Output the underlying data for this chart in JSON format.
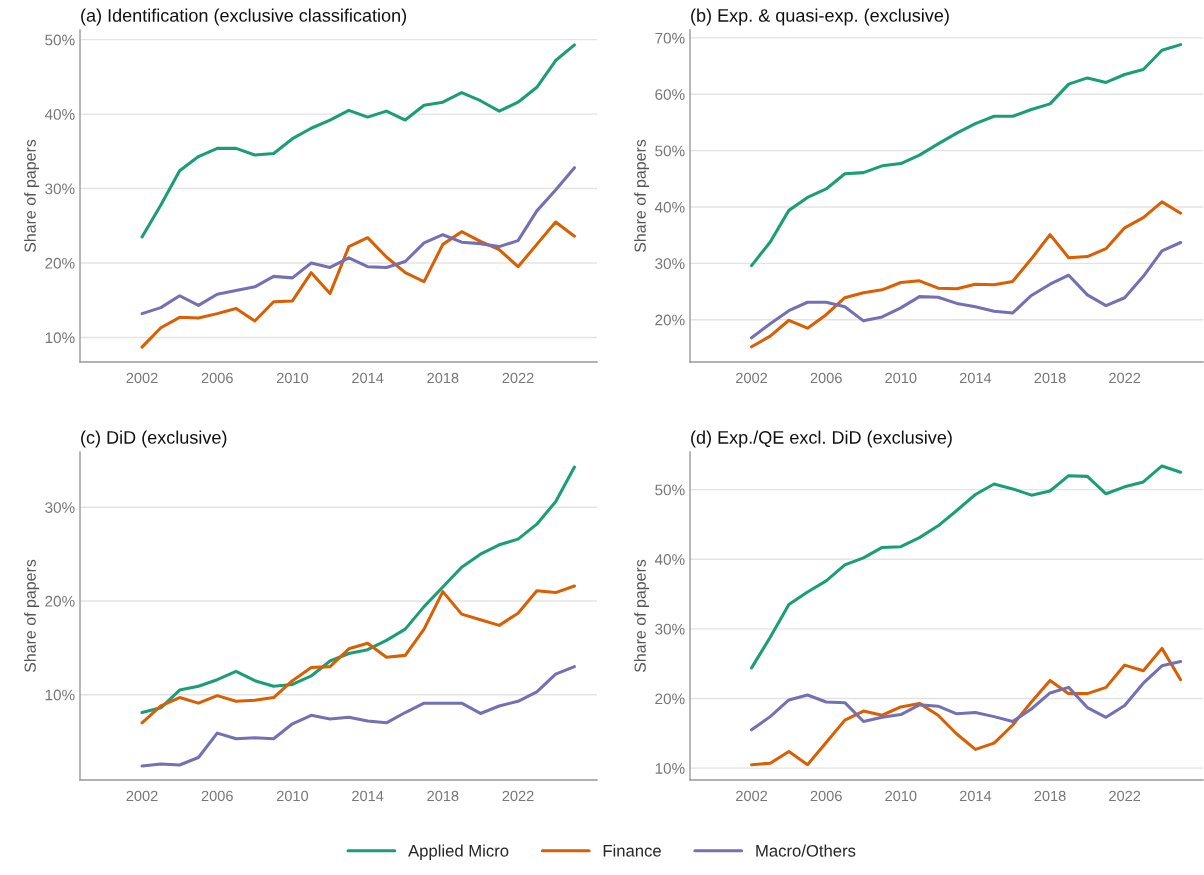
{
  "chart_data": [
    {
      "type": "line",
      "title": "(a) Identification (exclusive classification)",
      "ylabel": "Share of papers",
      "grid": "y",
      "legend": "bottom",
      "x": [
        2002,
        2003,
        2004,
        2005,
        2006,
        2007,
        2008,
        2009,
        2010,
        2011,
        2012,
        2013,
        2014,
        2015,
        2016,
        2017,
        2018,
        2019,
        2020,
        2021,
        2022,
        2023,
        2024,
        2025
      ],
      "xlim": [
        1998.7,
        2026.2
      ],
      "xticks": [
        2002,
        2006,
        2010,
        2014,
        2018,
        2022
      ],
      "ylim": [
        6.7,
        51.3
      ],
      "yticks": [
        {
          "value": 10,
          "label": "10%"
        },
        {
          "value": 20,
          "label": "20%"
        },
        {
          "value": 30,
          "label": "30%"
        },
        {
          "value": 40,
          "label": "40%"
        },
        {
          "value": 50,
          "label": "50%"
        }
      ],
      "series": [
        {
          "name": "Applied Micro",
          "color": "#1b9e77",
          "values": [
            23.5,
            27.8,
            32.4,
            34.3,
            35.4,
            35.4,
            34.5,
            34.7,
            36.7,
            38.1,
            39.2,
            40.5,
            39.6,
            40.4,
            39.2,
            41.2,
            41.6,
            42.9,
            41.8,
            40.4,
            41.6,
            43.6,
            47.2,
            49.3
          ]
        },
        {
          "name": "Finance",
          "color": "#d95f02",
          "values": [
            8.7,
            11.3,
            12.7,
            12.6,
            13.2,
            13.9,
            12.2,
            14.8,
            14.9,
            18.7,
            15.9,
            22.2,
            23.4,
            20.8,
            18.7,
            17.5,
            22.5,
            24.2,
            22.9,
            21.8,
            19.5,
            22.5,
            25.5,
            23.6
          ]
        },
        {
          "name": "Macro/Others",
          "color": "#7570b3",
          "values": [
            13.2,
            14.0,
            15.6,
            14.3,
            15.8,
            16.3,
            16.8,
            18.2,
            18.0,
            20.0,
            19.4,
            20.7,
            19.5,
            19.4,
            20.2,
            22.7,
            23.8,
            22.8,
            22.6,
            22.2,
            23.0,
            27.0,
            29.8,
            32.8
          ]
        }
      ]
    },
    {
      "type": "line",
      "title": "(b) Exp. & quasi-exp. (exclusive)",
      "ylabel": "Share of papers",
      "grid": "y",
      "x": [
        2002,
        2003,
        2004,
        2005,
        2006,
        2007,
        2008,
        2009,
        2010,
        2011,
        2012,
        2013,
        2014,
        2015,
        2016,
        2017,
        2018,
        2019,
        2020,
        2021,
        2022,
        2023,
        2024,
        2025
      ],
      "xlim": [
        1998.7,
        2026.2
      ],
      "xticks": [
        2002,
        2006,
        2010,
        2014,
        2018,
        2022
      ],
      "ylim": [
        12.5,
        71.4
      ],
      "yticks": [
        {
          "value": 20,
          "label": "20%"
        },
        {
          "value": 30,
          "label": "30%"
        },
        {
          "value": 40,
          "label": "40%"
        },
        {
          "value": 50,
          "label": "50%"
        },
        {
          "value": 60,
          "label": "60%"
        },
        {
          "value": 70,
          "label": "70%"
        }
      ],
      "series": [
        {
          "color": "#1b9e77",
          "values": [
            29.6,
            33.8,
            39.4,
            41.7,
            43.2,
            45.9,
            46.1,
            47.3,
            47.7,
            49.2,
            51.2,
            53.1,
            54.8,
            56.1,
            56.1,
            57.3,
            58.3,
            61.8,
            62.9,
            62.1,
            63.5,
            64.4,
            67.8,
            68.8
          ]
        },
        {
          "color": "#d95f02",
          "values": [
            15.2,
            17.1,
            19.9,
            18.5,
            20.9,
            23.9,
            24.8,
            25.3,
            26.6,
            26.9,
            25.6,
            25.5,
            26.3,
            26.2,
            26.8,
            30.8,
            35.1,
            31.0,
            31.2,
            32.6,
            36.3,
            38.1,
            40.9,
            38.9
          ]
        },
        {
          "color": "#7570b3",
          "values": [
            16.8,
            19.3,
            21.6,
            23.1,
            23.1,
            22.3,
            19.8,
            20.5,
            22.1,
            24.1,
            24.0,
            22.9,
            22.3,
            21.5,
            21.2,
            24.3,
            26.3,
            27.9,
            24.4,
            22.5,
            23.9,
            27.7,
            32.2,
            33.7
          ]
        }
      ]
    },
    {
      "type": "line",
      "title": "(c) DiD (exclusive)",
      "ylabel": "Share of papers",
      "grid": "y",
      "x": [
        2002,
        2003,
        2004,
        2005,
        2006,
        2007,
        2008,
        2009,
        2010,
        2011,
        2012,
        2013,
        2014,
        2015,
        2016,
        2017,
        2018,
        2019,
        2020,
        2021,
        2022,
        2023,
        2024,
        2025
      ],
      "xlim": [
        1998.7,
        2026.2
      ],
      "xticks": [
        2002,
        2006,
        2010,
        2014,
        2018,
        2022
      ],
      "ylim": [
        0.9,
        35.9
      ],
      "yticks": [
        {
          "value": 10,
          "label": "10%"
        },
        {
          "value": 20,
          "label": "20%"
        },
        {
          "value": 30,
          "label": "30%"
        }
      ],
      "series": [
        {
          "color": "#1b9e77",
          "values": [
            8.1,
            8.6,
            10.5,
            10.9,
            11.6,
            12.5,
            11.5,
            10.9,
            11.1,
            12.0,
            13.6,
            14.4,
            14.8,
            15.8,
            17.0,
            19.4,
            21.5,
            23.6,
            25.0,
            26.0,
            26.6,
            28.2,
            30.6,
            34.3
          ]
        },
        {
          "color": "#d95f02",
          "values": [
            7.0,
            8.8,
            9.7,
            9.1,
            9.9,
            9.3,
            9.4,
            9.7,
            11.5,
            12.9,
            13.0,
            14.9,
            15.5,
            14.0,
            14.2,
            17.0,
            21.0,
            18.6,
            18.0,
            17.4,
            18.7,
            21.1,
            20.9,
            21.6
          ]
        },
        {
          "color": "#7570b3",
          "values": [
            2.4,
            2.6,
            2.5,
            3.3,
            5.9,
            5.3,
            5.4,
            5.3,
            6.9,
            7.8,
            7.4,
            7.6,
            7.2,
            7.0,
            8.1,
            9.1,
            9.1,
            9.1,
            8.0,
            8.8,
            9.3,
            10.3,
            12.2,
            13.0
          ]
        }
      ]
    },
    {
      "type": "line",
      "title": "(d) Exp./QE excl. DiD (exclusive)",
      "ylabel": "Share of papers",
      "grid": "y",
      "x": [
        2002,
        2003,
        2004,
        2005,
        2006,
        2007,
        2008,
        2009,
        2010,
        2011,
        2012,
        2013,
        2014,
        2015,
        2016,
        2017,
        2018,
        2019,
        2020,
        2021,
        2022,
        2023,
        2024,
        2025
      ],
      "xlim": [
        1998.7,
        2026.2
      ],
      "xticks": [
        2002,
        2006,
        2010,
        2014,
        2018,
        2022
      ],
      "ylim": [
        8.3,
        55.4
      ],
      "yticks": [
        {
          "value": 10,
          "label": "10%"
        },
        {
          "value": 20,
          "label": "20%"
        },
        {
          "value": 30,
          "label": "30%"
        },
        {
          "value": 40,
          "label": "40%"
        },
        {
          "value": 50,
          "label": "50%"
        }
      ],
      "series": [
        {
          "color": "#1b9e77",
          "values": [
            24.4,
            28.8,
            33.5,
            35.3,
            36.9,
            39.2,
            40.2,
            41.7,
            41.8,
            43.1,
            44.8,
            47.0,
            49.3,
            50.8,
            50.1,
            49.2,
            49.8,
            52.0,
            51.9,
            49.4,
            50.4,
            51.1,
            53.4,
            52.5
          ]
        },
        {
          "color": "#d95f02",
          "values": [
            10.5,
            10.7,
            12.4,
            10.5,
            13.7,
            16.9,
            18.2,
            17.6,
            18.8,
            19.3,
            17.6,
            14.9,
            12.7,
            13.6,
            16.2,
            19.5,
            22.6,
            20.7,
            20.7,
            21.6,
            24.8,
            24.0,
            27.2,
            22.7
          ]
        },
        {
          "color": "#7570b3",
          "values": [
            15.5,
            17.4,
            19.8,
            20.5,
            19.5,
            19.4,
            16.7,
            17.3,
            17.7,
            19.1,
            18.9,
            17.8,
            18.0,
            17.4,
            16.7,
            18.5,
            20.8,
            21.6,
            18.7,
            17.3,
            19.0,
            22.2,
            24.7,
            25.3
          ]
        }
      ]
    }
  ]
}
